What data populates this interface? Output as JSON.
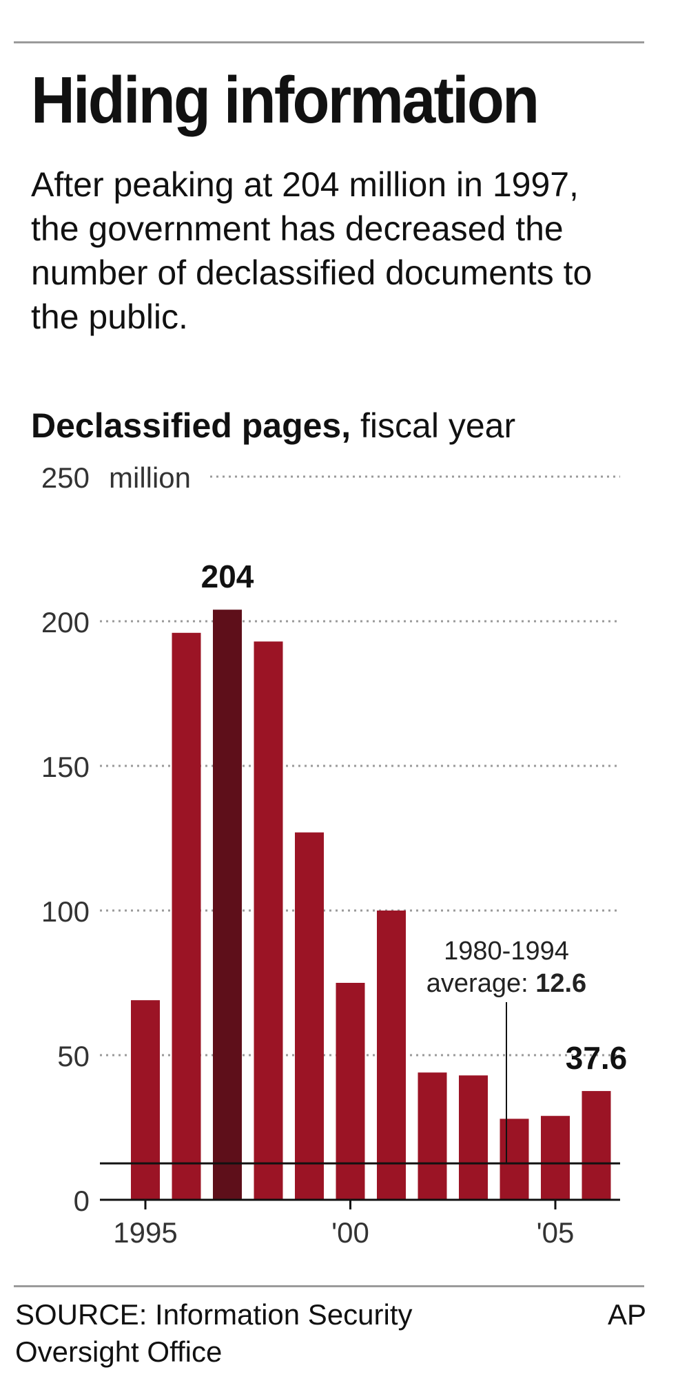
{
  "title": "Hiding information",
  "subtitle": "After peaking at 204 million in 1997, the government has decreased the number of declassified documents to the public.",
  "chart_heading": {
    "bold": "Declassified pages,",
    "rest": " fiscal year"
  },
  "footer": {
    "source": "SOURCE: Information Security Oversight Office",
    "credit": "AP"
  },
  "chart_data": {
    "type": "bar",
    "title": "Declassified pages, fiscal year",
    "ylabel": "million",
    "ylim": [
      0,
      250
    ],
    "yticks": [
      {
        "value": 0,
        "label": "0"
      },
      {
        "value": 50,
        "label": "50"
      },
      {
        "value": 100,
        "label": "100"
      },
      {
        "value": 150,
        "label": "150"
      },
      {
        "value": 200,
        "label": "200"
      },
      {
        "value": 250,
        "label": "250"
      }
    ],
    "ytick_unit": "million",
    "grid": true,
    "categories": [
      "1995",
      "1996",
      "1997",
      "1998",
      "1999",
      "2000",
      "2001",
      "2002",
      "2003",
      "2004",
      "2005",
      "2006"
    ],
    "xtick_labels": [
      {
        "category": "1995",
        "label": "1995"
      },
      {
        "category": "2000",
        "label": "'00"
      },
      {
        "category": "2005",
        "label": "'05"
      }
    ],
    "values": [
      69,
      196,
      204,
      193,
      127,
      75,
      100,
      44,
      43,
      28,
      29,
      37.6
    ],
    "colors": {
      "bar": "#9b1425",
      "highlight": "#5e0f1a",
      "axis": "#111111",
      "grid": "#9a9a9a"
    },
    "highlight_category": "1997",
    "data_labels": [
      {
        "category": "1997",
        "label": "204"
      },
      {
        "category": "2006",
        "label": "37.6"
      }
    ],
    "reference_line": {
      "value": 12.6,
      "label_line1": "1980-1994",
      "label_line2": "average: ",
      "label_value": "12.6"
    }
  }
}
